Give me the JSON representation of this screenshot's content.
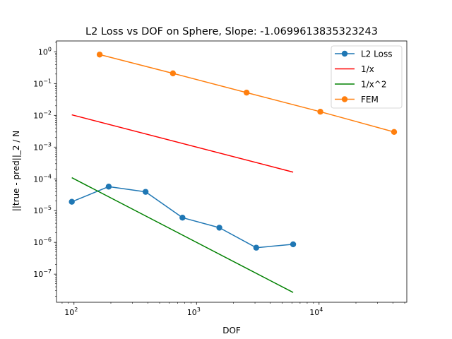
{
  "chart_data": {
    "type": "line",
    "title": "L2 Loss vs DOF on Sphere, Slope: -1.0699613835323243",
    "xlabel": "DOF",
    "ylabel": "||true - pred||_2 / N",
    "xscale": "log",
    "yscale": "log",
    "xlim": [
      72,
      52000
    ],
    "ylim": [
      1.3e-08,
      2.2
    ],
    "grid": false,
    "legend_position": "top-right",
    "x_ticks": [
      {
        "value": 100,
        "base": "10",
        "exp": "2"
      },
      {
        "value": 1000,
        "base": "10",
        "exp": "3"
      },
      {
        "value": 10000,
        "base": "10",
        "exp": "4"
      }
    ],
    "y_ticks": [
      {
        "value": 1e-07,
        "base": "10",
        "exp": "−7"
      },
      {
        "value": 1e-06,
        "base": "10",
        "exp": "−6"
      },
      {
        "value": 1e-05,
        "base": "10",
        "exp": "−5"
      },
      {
        "value": 0.0001,
        "base": "10",
        "exp": "−4"
      },
      {
        "value": 0.001,
        "base": "10",
        "exp": "−3"
      },
      {
        "value": 0.01,
        "base": "10",
        "exp": "−2"
      },
      {
        "value": 0.1,
        "base": "10",
        "exp": "−1"
      },
      {
        "value": 1,
        "base": "10",
        "exp": "0"
      }
    ],
    "series": [
      {
        "name": "L2 Loss",
        "color": "#1f77b4",
        "marker": "circle",
        "x": [
          96,
          192,
          384,
          768,
          1536,
          3072,
          6144
        ],
        "y": [
          1.9e-05,
          5.7e-05,
          3.9e-05,
          6e-06,
          2.9e-06,
          6.8e-07,
          8.7e-07
        ]
      },
      {
        "name": "1/x",
        "color": "#ff0000",
        "marker": "none",
        "x": [
          96,
          6144
        ],
        "y": [
          0.0104,
          0.000163
        ]
      },
      {
        "name": "1/x^2",
        "color": "#008000",
        "marker": "none",
        "x": [
          96,
          6144
        ],
        "y": [
          0.000109,
          2.65e-08
        ]
      },
      {
        "name": "FEM",
        "color": "#ff7f0e",
        "marker": "circle",
        "x": [
          162,
          642,
          2562,
          10242,
          40962
        ],
        "y": [
          0.82,
          0.21,
          0.052,
          0.013,
          0.003
        ]
      }
    ]
  }
}
